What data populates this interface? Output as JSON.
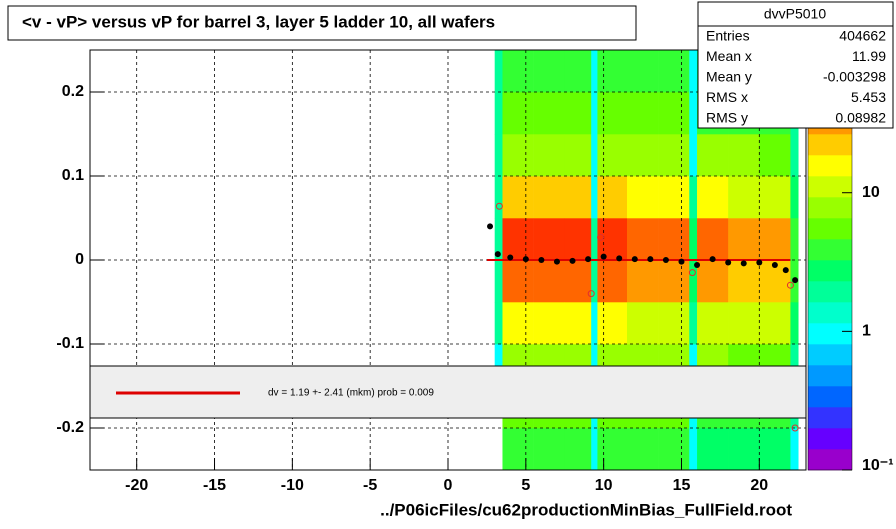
{
  "chart_data": {
    "type": "heatmap-profile",
    "title": "<v - vP>       versus   vP for barrel 3, layer 5 ladder 10, all wafers",
    "x_label": "../P06icFiles/cu62productionMinBias_FullField.root",
    "xlim": [
      -23,
      23
    ],
    "ylim": [
      -0.25,
      0.25
    ],
    "xticks": [
      -20,
      -15,
      -10,
      -5,
      0,
      5,
      10,
      15,
      20
    ],
    "yticks": [
      -0.2,
      -0.1,
      0,
      0.1,
      0.2
    ],
    "grid": true,
    "heatmap": {
      "xbins": [
        3.0,
        3.5,
        5.5,
        7.5,
        9.2,
        9.6,
        11.5,
        13.5,
        15.5,
        16.0,
        18.0,
        20.0,
        22.0,
        22.5
      ],
      "ybins": [
        -0.25,
        -0.2,
        -0.15,
        -0.1,
        -0.05,
        0,
        0.05,
        0.1,
        0.15,
        0.2,
        0.25
      ],
      "counts": [
        [
          0,
          0,
          1,
          2,
          2,
          2,
          2,
          2,
          2,
          2
        ],
        [
          4,
          5,
          8,
          15,
          40,
          60,
          20,
          9,
          5,
          4
        ],
        [
          4,
          5,
          8,
          16,
          45,
          65,
          22,
          9,
          5,
          4
        ],
        [
          4,
          5,
          8,
          15,
          42,
          60,
          20,
          9,
          5,
          4
        ],
        [
          1,
          1,
          1,
          1,
          2,
          2,
          1,
          1,
          1,
          1
        ],
        [
          4,
          5,
          8,
          14,
          38,
          55,
          20,
          9,
          5,
          4
        ],
        [
          4,
          5,
          7,
          13,
          34,
          50,
          18,
          8,
          5,
          4
        ],
        [
          4,
          5,
          7,
          12,
          30,
          45,
          16,
          8,
          5,
          4
        ],
        [
          1,
          1,
          1,
          2,
          3,
          3,
          2,
          1,
          1,
          1
        ],
        [
          3,
          4,
          7,
          12,
          28,
          40,
          15,
          7,
          4,
          3
        ],
        [
          3,
          4,
          6,
          11,
          26,
          35,
          13,
          7,
          4,
          3
        ],
        [
          3,
          4,
          6,
          10,
          22,
          30,
          12,
          6,
          4,
          3
        ],
        [
          1,
          2,
          2,
          3,
          4,
          4,
          3,
          2,
          2,
          1
        ]
      ]
    },
    "zlim": [
      0.1,
      107
    ],
    "zticks": [
      {
        "value": 0.1,
        "label": "10⁻¹"
      },
      1,
      10
    ],
    "palette": [
      "#9900cc",
      "#6600ff",
      "#3333ff",
      "#0066ff",
      "#0099ff",
      "#00ccff",
      "#00ffff",
      "#00ffcc",
      "#00ff99",
      "#00ff66",
      "#33ff33",
      "#66ff00",
      "#99ff00",
      "#ccff00",
      "#ffff00",
      "#ffcc00",
      "#ff9900",
      "#ff6600",
      "#ff3300",
      "#ff0000"
    ],
    "profile": {
      "color": "#000000",
      "x": [
        2.7,
        3.2,
        4,
        5,
        6,
        7,
        8,
        9,
        10,
        11,
        12,
        13,
        14,
        15,
        16,
        17,
        18,
        19,
        20,
        21,
        21.7,
        22.3
      ],
      "values": [
        0.04,
        0.007,
        0.003,
        0.001,
        0,
        -0.002,
        -0.001,
        0.001,
        0.004,
        0.002,
        0.001,
        0.001,
        0,
        -0.002,
        -0.006,
        0.001,
        -0.003,
        -0.004,
        -0.003,
        -0.006,
        -0.012,
        -0.024
      ]
    },
    "outliers": {
      "color": "#e03030",
      "x": [
        3.3,
        9.2,
        9.8,
        15.7,
        22,
        22.3
      ],
      "values": [
        0.064,
        -0.04,
        0.027,
        -0.015,
        -0.03,
        -0.2
      ]
    },
    "fit_line": {
      "color": "#dd0000",
      "x": [
        2.5,
        22
      ],
      "values": [
        0,
        0
      ]
    },
    "legend_text": "dv =    1.19 +-  2.41 (mkm) prob = 0.009",
    "stats": {
      "title": "dvvP5010",
      "rows": [
        [
          "Entries",
          404662
        ],
        [
          "Mean x",
          11.99
        ],
        [
          "Mean y",
          -0.003298
        ],
        [
          "RMS x",
          5.453
        ],
        [
          "RMS y",
          0.08982
        ]
      ]
    }
  }
}
